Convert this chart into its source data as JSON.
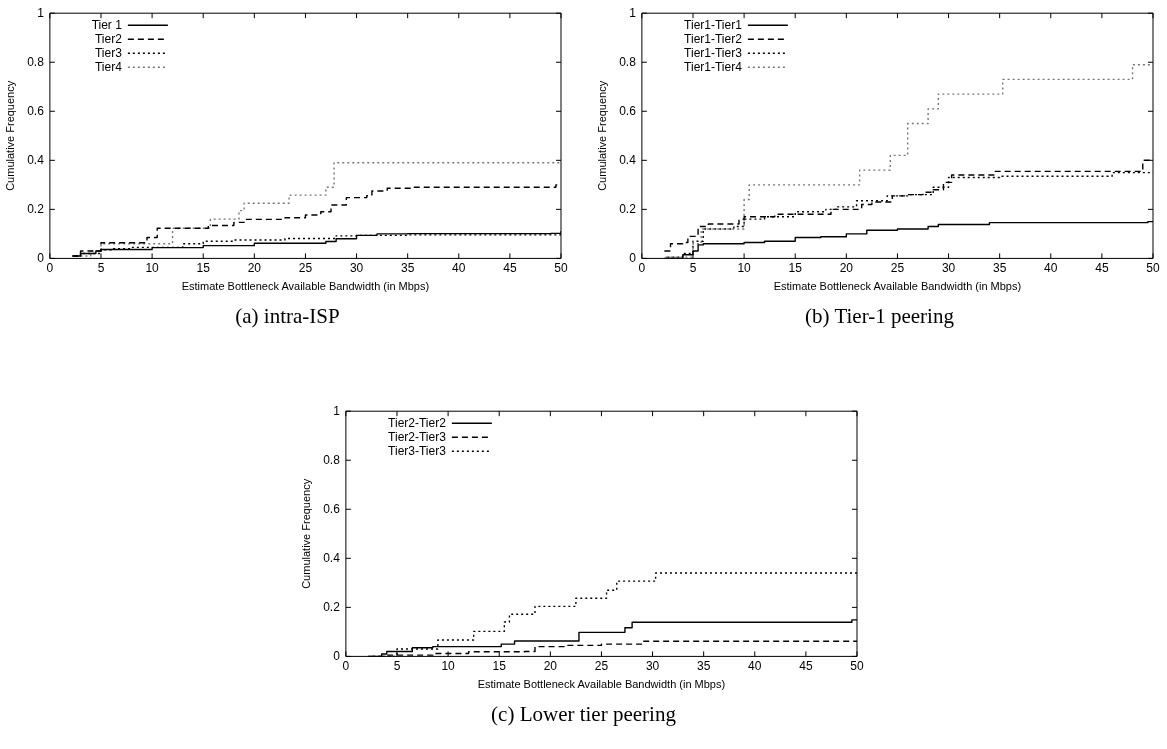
{
  "chart_data": [
    {
      "type": "step",
      "xlabel": "Estimate Bottleneck Available Bandwidth (in Mbps)",
      "ylabel": "Cumulative Frequency",
      "annotations": [
        "(a) intra-ISP"
      ],
      "xlim": [
        0,
        50
      ],
      "ylim": [
        0,
        1
      ],
      "xticks": [
        0,
        5,
        10,
        15,
        20,
        25,
        30,
        35,
        40,
        45,
        50
      ],
      "yticks": [
        0,
        0.2,
        0.4,
        0.6,
        0.8,
        1
      ],
      "legend": "top left",
      "grid": false,
      "series": [
        {
          "name": "Tier 1",
          "color": "#000000",
          "line_style": "solid",
          "x": [
            2.2,
            3,
            4.5,
            5,
            10,
            15,
            20,
            27,
            28,
            30,
            32,
            35,
            49,
            50
          ],
          "values": [
            0.01,
            0.02,
            0.03,
            0.036,
            0.044,
            0.052,
            0.062,
            0.069,
            0.08,
            0.094,
            0.1,
            0.101,
            0.102,
            0.112
          ]
        },
        {
          "name": "Tier2",
          "color": "#000000",
          "line_style": "dashed",
          "x": [
            2.2,
            3,
            5,
            9.5,
            10.5,
            15.5,
            18,
            19,
            23,
            25,
            26.5,
            27.5,
            29,
            31,
            31.5,
            33,
            35.5,
            49.5,
            50
          ],
          "values": [
            0.01,
            0.03,
            0.064,
            0.085,
            0.123,
            0.134,
            0.147,
            0.159,
            0.166,
            0.177,
            0.19,
            0.218,
            0.248,
            0.256,
            0.275,
            0.286,
            0.29,
            0.3,
            0.3
          ]
        },
        {
          "name": "Tier3",
          "color": "#000000",
          "line_style": "dotted",
          "x": [
            2.5,
            3,
            5,
            6,
            8,
            13,
            15,
            18,
            23,
            28,
            30,
            35,
            50
          ],
          "values": [
            0.01,
            0.02,
            0.035,
            0.04,
            0.045,
            0.06,
            0.07,
            0.075,
            0.081,
            0.092,
            0.094,
            0.096,
            0.096
          ]
        },
        {
          "name": "Tier4",
          "color": "#777777",
          "line_style": "dotted",
          "x": [
            2.5,
            4,
            5,
            12,
            15.7,
            18.5,
            19,
            23.4,
            27,
            27.8,
            50
          ],
          "values": [
            0.01,
            0.03,
            0.06,
            0.123,
            0.16,
            0.195,
            0.225,
            0.258,
            0.29,
            0.39,
            0.39
          ]
        }
      ]
    },
    {
      "type": "step",
      "xlabel": "Estimate Bottleneck Available Bandwidth (in Mbps)",
      "ylabel": "Cumulative Frequency",
      "annotations": [
        "(b) Tier-1 peering"
      ],
      "xlim": [
        0,
        50
      ],
      "ylim": [
        0,
        1
      ],
      "xticks": [
        0,
        5,
        10,
        15,
        20,
        25,
        30,
        35,
        40,
        45,
        50
      ],
      "yticks": [
        0,
        0.2,
        0.4,
        0.6,
        0.8,
        1
      ],
      "legend": "top left",
      "grid": false,
      "series": [
        {
          "name": "Tier1-Tier1",
          "color": "#000000",
          "line_style": "solid",
          "x": [
            2.2,
            4,
            5,
            5.5,
            6,
            10,
            12,
            15,
            17.5,
            20,
            22,
            25,
            28,
            29,
            34,
            49.5,
            50
          ],
          "values": [
            0,
            0.015,
            0.03,
            0.055,
            0.06,
            0.065,
            0.07,
            0.085,
            0.088,
            0.1,
            0.115,
            0.12,
            0.13,
            0.138,
            0.146,
            0.15,
            0.15
          ]
        },
        {
          "name": "Tier1-Tier2",
          "color": "#000000",
          "line_style": "dashed",
          "x": [
            2.2,
            2.8,
            4,
            4.5,
            5.5,
            6.5,
            9.5,
            10,
            13,
            18.5,
            21.5,
            22.5,
            24.5,
            26,
            27.5,
            28.5,
            29.5,
            30.3,
            34.5,
            49,
            50
          ],
          "values": [
            0.03,
            0.06,
            0.065,
            0.09,
            0.13,
            0.14,
            0.16,
            0.17,
            0.18,
            0.2,
            0.22,
            0.23,
            0.255,
            0.26,
            0.27,
            0.28,
            0.31,
            0.34,
            0.355,
            0.4,
            0.4
          ]
        },
        {
          "name": "Tier1-Tier3",
          "color": "#000000",
          "line_style": "dotted",
          "x": [
            2.5,
            4,
            5,
            6,
            9,
            10,
            12,
            15,
            18,
            19,
            21,
            24,
            26,
            28.5,
            30,
            35,
            46,
            50
          ],
          "values": [
            0.005,
            0.02,
            0.07,
            0.12,
            0.13,
            0.16,
            0.17,
            0.19,
            0.2,
            0.21,
            0.235,
            0.255,
            0.26,
            0.29,
            0.33,
            0.335,
            0.35,
            0.35
          ]
        },
        {
          "name": "Tier1-Tier4",
          "color": "#777777",
          "line_style": "dotted",
          "x": [
            2.3,
            5,
            5.8,
            10,
            10.5,
            21.3,
            24.3,
            26,
            28,
            29,
            35.3,
            48,
            50
          ],
          "values": [
            0.005,
            0.06,
            0.12,
            0.24,
            0.3,
            0.36,
            0.42,
            0.55,
            0.61,
            0.67,
            0.73,
            0.79,
            0.79
          ]
        }
      ]
    },
    {
      "type": "step",
      "xlabel": "Estimate Bottleneck Available Bandwidth (in Mbps)",
      "ylabel": "Cumulative Frequency",
      "annotations": [
        "(c) Lower tier peering"
      ],
      "xlim": [
        0,
        50
      ],
      "ylim": [
        0,
        1
      ],
      "xticks": [
        0,
        5,
        10,
        15,
        20,
        25,
        30,
        35,
        40,
        45,
        50
      ],
      "yticks": [
        0,
        0.2,
        0.4,
        0.6,
        0.8,
        1
      ],
      "legend": "top left",
      "grid": false,
      "series": [
        {
          "name": "Tier2-Tier2",
          "color": "#000000",
          "line_style": "solid",
          "x": [
            2.5,
            3.5,
            4,
            6.5,
            8.5,
            15.2,
            16.5,
            22.8,
            27.3,
            28,
            49.5,
            50
          ],
          "values": [
            0,
            0.01,
            0.02,
            0.035,
            0.04,
            0.05,
            0.063,
            0.098,
            0.117,
            0.139,
            0.149,
            0.149
          ]
        },
        {
          "name": "Tier2-Tier3",
          "color": "#000000",
          "line_style": "dashed",
          "x": [
            2.2,
            4,
            8.5,
            12,
            17.5,
            18.5,
            21.5,
            25,
            29,
            50
          ],
          "values": [
            0,
            0.005,
            0.012,
            0.019,
            0.02,
            0.04,
            0.045,
            0.05,
            0.062,
            0.062
          ]
        },
        {
          "name": "Tier3-Tier3",
          "color": "#000000",
          "line_style": "dotted",
          "x": [
            2.2,
            5,
            9,
            12.5,
            15.5,
            16,
            18.5,
            22.5,
            25.5,
            26.5,
            30.3,
            50
          ],
          "values": [
            0,
            0.03,
            0.067,
            0.102,
            0.14,
            0.172,
            0.204,
            0.237,
            0.27,
            0.307,
            0.34,
            0.34
          ]
        }
      ]
    }
  ]
}
